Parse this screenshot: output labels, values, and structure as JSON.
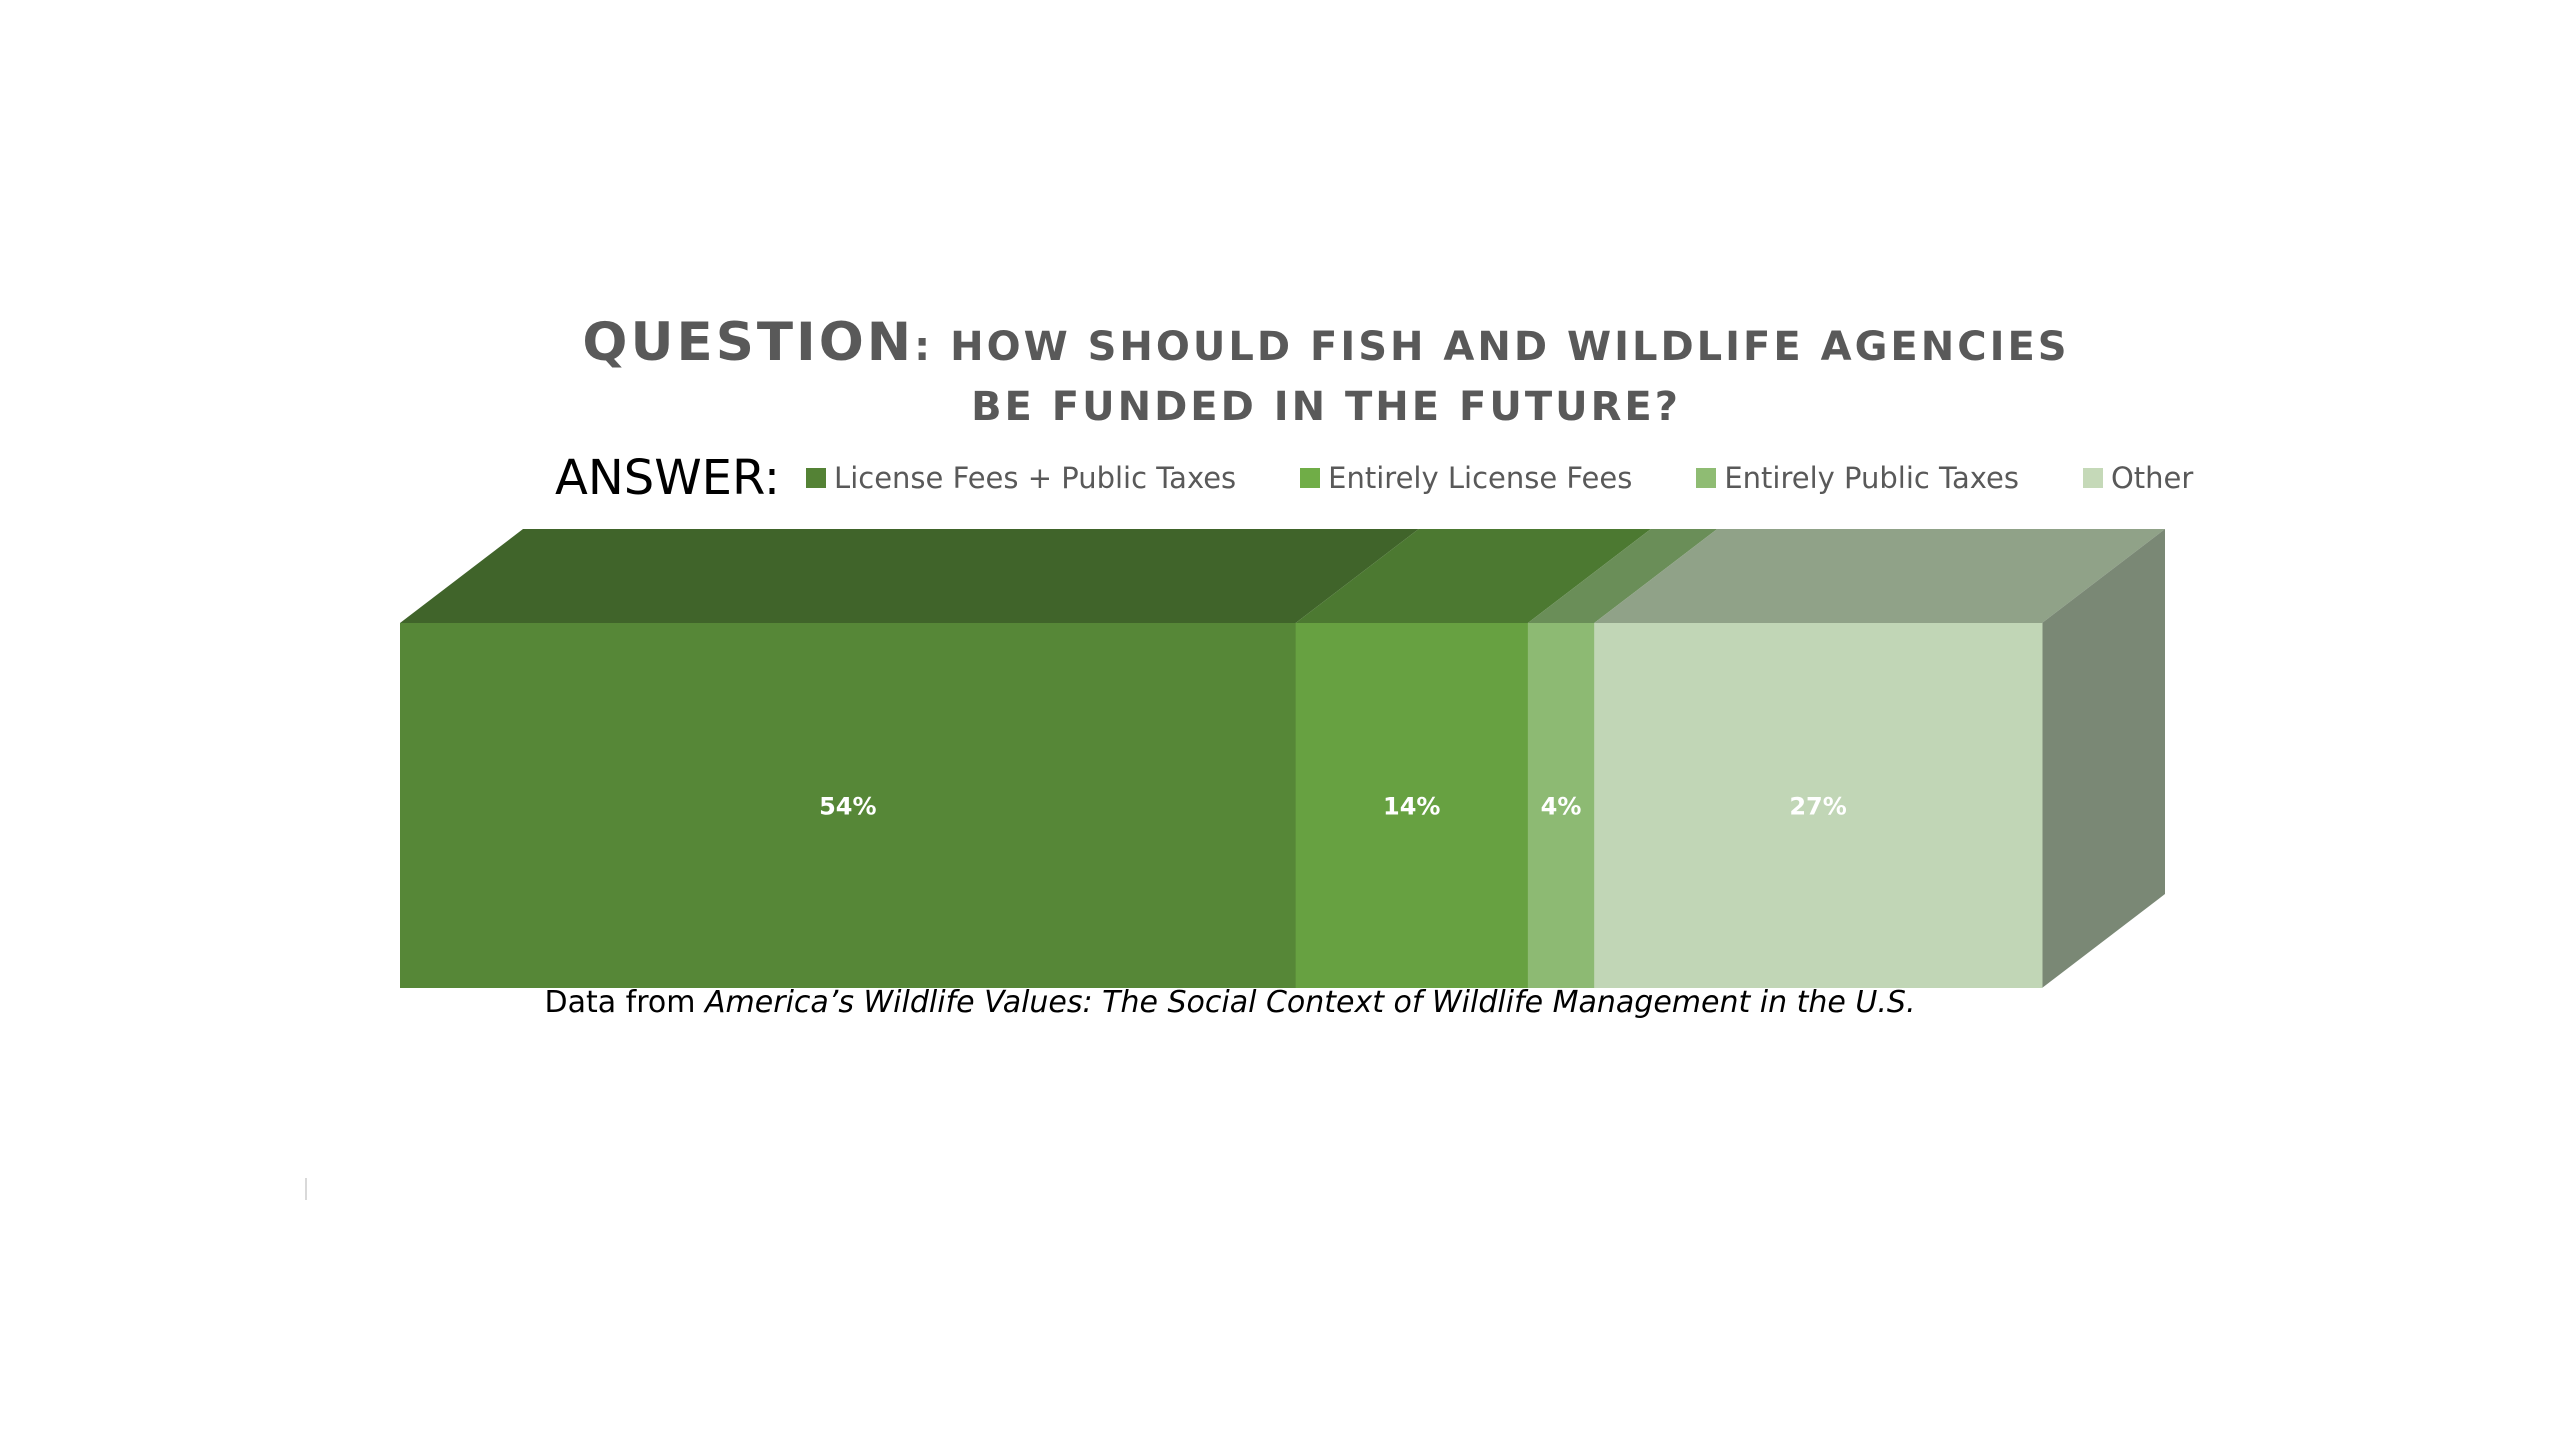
{
  "title": {
    "question_word": "QUESTION",
    "line1_rest": ": HOW SHOULD FISH AND WILDLIFE AGENCIES",
    "line2": "BE FUNDED IN THE FUTURE?"
  },
  "legend": {
    "prefix": "ANSWER:"
  },
  "source": {
    "prefix": "Data from ",
    "title": "America’s Wildlife Values: The Social Context of Wildlife Management in the U.S."
  },
  "chart_data": {
    "type": "bar",
    "orientation": "horizontal",
    "stacked": true,
    "three_d": true,
    "categories": [
      ""
    ],
    "series": [
      {
        "name": "License Fees + Public Taxes",
        "values": [
          54
        ],
        "label": "54%",
        "color": "#568737",
        "top_color": "#40642A",
        "legend_color": "#548235"
      },
      {
        "name": "Entirely License Fees",
        "values": [
          14
        ],
        "label": "14%",
        "color": "#67A141",
        "top_color": "#4C7931",
        "legend_color": "#70AD47"
      },
      {
        "name": "Entirely Public Taxes",
        "values": [
          4
        ],
        "label": "4%",
        "color": "#8DBA73",
        "top_color": "#6A8E58",
        "legend_color": "#8FBC73"
      },
      {
        "name": "Other",
        "values": [
          27
        ],
        "label": "27%",
        "color": "#C1D6B6",
        "top_color": "#90A288",
        "legend_color": "#C5D9B8"
      }
    ],
    "side_color": "#7A8875",
    "legend_position": "top",
    "grid": false
  }
}
